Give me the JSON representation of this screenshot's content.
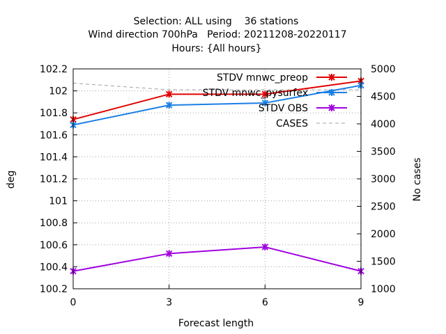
{
  "chart_data": {
    "type": "line",
    "title_lines": [
      "Selection: ALL using    36 stations",
      "Wind direction 700hPa   Period: 20211208-20220117",
      "Hours: {All hours}"
    ],
    "xlabel": "Forecast length",
    "ylabel": "deg",
    "y2label": "No cases",
    "x": [
      0,
      3,
      6,
      9
    ],
    "xlim": [
      0,
      9
    ],
    "ylim": [
      100.2,
      102.2
    ],
    "y2lim": [
      1000,
      5000
    ],
    "xticks": [
      "0",
      "3",
      "6",
      "9"
    ],
    "yticks": [
      "100.2",
      "100.4",
      "100.6",
      "100.8",
      "101",
      "101.2",
      "101.4",
      "101.6",
      "101.8",
      "102",
      "102.2"
    ],
    "y2ticks": [
      "1000",
      "1500",
      "2000",
      "2500",
      "3000",
      "3500",
      "4000",
      "4500",
      "5000"
    ],
    "grid": true,
    "legend_position": "top-right",
    "series": [
      {
        "name": "STDV mnwc_preop",
        "axis": "y",
        "color": "#e00000",
        "marker": "x",
        "values": [
          101.74,
          101.97,
          101.97,
          102.09
        ]
      },
      {
        "name": "STDV mnwc_pysurfex",
        "axis": "y",
        "color": "#1a7fe6",
        "marker": "x",
        "values": [
          101.69,
          101.87,
          101.89,
          102.05
        ]
      },
      {
        "name": "STDV OBS",
        "axis": "y",
        "color": "#a000e0",
        "marker": "x",
        "values": [
          100.36,
          100.52,
          100.58,
          100.36
        ]
      },
      {
        "name": "CASES",
        "axis": "y2",
        "color": "#a0a0a0",
        "marker": "none",
        "dashed": true,
        "values": [
          4740,
          4620,
          4620,
          4620
        ]
      }
    ]
  }
}
